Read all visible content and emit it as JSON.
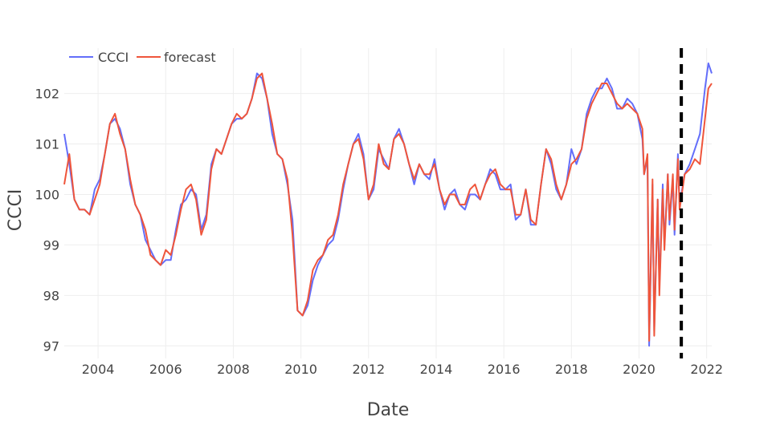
{
  "chart_data": {
    "type": "line",
    "xlabel": "Date",
    "ylabel": "CCCI",
    "xlim": [
      2003.0,
      2022.15
    ],
    "ylim": [
      96.75,
      102.9
    ],
    "x_ticks": [
      2004,
      2006,
      2008,
      2010,
      2012,
      2014,
      2016,
      2018,
      2020,
      2022
    ],
    "y_ticks": [
      97,
      98,
      99,
      100,
      101,
      102
    ],
    "grid": true,
    "legend_position": "top-left",
    "colors": {
      "ccci": "#636efa",
      "forecast": "#ef553b",
      "marker": "#000000"
    },
    "vline": {
      "x": 2021.25,
      "style": "dashed"
    },
    "series": [
      {
        "name": "CCCI",
        "points": [
          [
            2003.0,
            101.2
          ],
          [
            2003.15,
            100.6
          ],
          [
            2003.3,
            99.9
          ],
          [
            2003.45,
            99.7
          ],
          [
            2003.6,
            99.7
          ],
          [
            2003.75,
            99.6
          ],
          [
            2003.9,
            100.1
          ],
          [
            2004.05,
            100.3
          ],
          [
            2004.2,
            100.8
          ],
          [
            2004.35,
            101.4
          ],
          [
            2004.5,
            101.5
          ],
          [
            2004.65,
            101.3
          ],
          [
            2004.8,
            100.9
          ],
          [
            2004.95,
            100.2
          ],
          [
            2005.1,
            99.8
          ],
          [
            2005.25,
            99.6
          ],
          [
            2005.4,
            99.1
          ],
          [
            2005.55,
            98.9
          ],
          [
            2005.7,
            98.7
          ],
          [
            2005.85,
            98.6
          ],
          [
            2006.0,
            98.7
          ],
          [
            2006.15,
            98.7
          ],
          [
            2006.3,
            99.3
          ],
          [
            2006.45,
            99.8
          ],
          [
            2006.6,
            99.9
          ],
          [
            2006.75,
            100.1
          ],
          [
            2006.9,
            100.0
          ],
          [
            2007.05,
            99.3
          ],
          [
            2007.2,
            99.6
          ],
          [
            2007.35,
            100.6
          ],
          [
            2007.5,
            100.9
          ],
          [
            2007.65,
            100.8
          ],
          [
            2007.8,
            101.1
          ],
          [
            2007.95,
            101.4
          ],
          [
            2008.1,
            101.5
          ],
          [
            2008.25,
            101.5
          ],
          [
            2008.4,
            101.6
          ],
          [
            2008.55,
            101.9
          ],
          [
            2008.7,
            102.4
          ],
          [
            2008.85,
            102.3
          ],
          [
            2009.0,
            101.9
          ],
          [
            2009.15,
            101.2
          ],
          [
            2009.3,
            100.8
          ],
          [
            2009.45,
            100.7
          ],
          [
            2009.6,
            100.2
          ],
          [
            2009.75,
            99.5
          ],
          [
            2009.9,
            97.7
          ],
          [
            2010.05,
            97.6
          ],
          [
            2010.2,
            97.8
          ],
          [
            2010.35,
            98.3
          ],
          [
            2010.5,
            98.6
          ],
          [
            2010.65,
            98.8
          ],
          [
            2010.8,
            99.0
          ],
          [
            2010.95,
            99.1
          ],
          [
            2011.1,
            99.5
          ],
          [
            2011.25,
            100.1
          ],
          [
            2011.4,
            100.6
          ],
          [
            2011.55,
            101.0
          ],
          [
            2011.7,
            101.2
          ],
          [
            2011.85,
            100.8
          ],
          [
            2012.0,
            99.9
          ],
          [
            2012.15,
            100.1
          ],
          [
            2012.3,
            100.9
          ],
          [
            2012.45,
            100.7
          ],
          [
            2012.6,
            100.5
          ],
          [
            2012.75,
            101.1
          ],
          [
            2012.9,
            101.3
          ],
          [
            2013.05,
            101.0
          ],
          [
            2013.2,
            100.6
          ],
          [
            2013.35,
            100.2
          ],
          [
            2013.5,
            100.6
          ],
          [
            2013.65,
            100.4
          ],
          [
            2013.8,
            100.3
          ],
          [
            2013.95,
            100.7
          ],
          [
            2014.1,
            100.1
          ],
          [
            2014.25,
            99.7
          ],
          [
            2014.4,
            100.0
          ],
          [
            2014.55,
            100.1
          ],
          [
            2014.7,
            99.8
          ],
          [
            2014.85,
            99.7
          ],
          [
            2015.0,
            100.0
          ],
          [
            2015.15,
            100.0
          ],
          [
            2015.3,
            99.9
          ],
          [
            2015.45,
            100.2
          ],
          [
            2015.6,
            100.5
          ],
          [
            2015.75,
            100.4
          ],
          [
            2015.9,
            100.1
          ],
          [
            2016.05,
            100.1
          ],
          [
            2016.2,
            100.2
          ],
          [
            2016.35,
            99.5
          ],
          [
            2016.5,
            99.6
          ],
          [
            2016.65,
            100.1
          ],
          [
            2016.8,
            99.4
          ],
          [
            2016.95,
            99.4
          ],
          [
            2017.1,
            100.2
          ],
          [
            2017.25,
            100.9
          ],
          [
            2017.4,
            100.6
          ],
          [
            2017.55,
            100.1
          ],
          [
            2017.7,
            99.9
          ],
          [
            2017.85,
            100.2
          ],
          [
            2018.0,
            100.9
          ],
          [
            2018.15,
            100.6
          ],
          [
            2018.3,
            100.9
          ],
          [
            2018.45,
            101.6
          ],
          [
            2018.6,
            101.9
          ],
          [
            2018.75,
            102.1
          ],
          [
            2018.9,
            102.1
          ],
          [
            2019.05,
            102.3
          ],
          [
            2019.2,
            102.1
          ],
          [
            2019.35,
            101.7
          ],
          [
            2019.5,
            101.7
          ],
          [
            2019.65,
            101.9
          ],
          [
            2019.8,
            101.8
          ],
          [
            2019.95,
            101.6
          ],
          [
            2020.1,
            101.1
          ],
          [
            2020.25,
            100.7
          ],
          [
            2020.4,
            100.2
          ],
          [
            2020.55,
            99.9
          ],
          [
            2020.7,
            100.2
          ],
          [
            2020.85,
            100.4
          ],
          [
            2021.0,
            100.3
          ],
          [
            2021.15,
            100.8
          ],
          [
            2020.15,
            100.4
          ],
          [
            2020.3,
            97.0
          ],
          [
            2020.45,
            97.3
          ],
          [
            2020.6,
            98.2
          ],
          [
            2020.75,
            99.0
          ],
          [
            2020.9,
            99.4
          ],
          [
            2021.05,
            99.2
          ],
          [
            2021.2,
            99.8
          ],
          [
            2021.35,
            100.4
          ],
          [
            2021.5,
            100.6
          ],
          [
            2021.65,
            100.9
          ],
          [
            2021.8,
            101.2
          ],
          [
            2021.95,
            102.1
          ],
          [
            2022.05,
            102.6
          ],
          [
            2022.15,
            102.4
          ]
        ]
      },
      {
        "name": "forecast",
        "points": [
          [
            2003.0,
            100.2
          ],
          [
            2003.15,
            100.8
          ],
          [
            2003.3,
            99.9
          ],
          [
            2003.45,
            99.7
          ],
          [
            2003.6,
            99.7
          ],
          [
            2003.75,
            99.6
          ],
          [
            2003.9,
            99.9
          ],
          [
            2004.05,
            100.2
          ],
          [
            2004.2,
            100.8
          ],
          [
            2004.35,
            101.4
          ],
          [
            2004.5,
            101.6
          ],
          [
            2004.65,
            101.2
          ],
          [
            2004.8,
            100.9
          ],
          [
            2004.95,
            100.3
          ],
          [
            2005.1,
            99.8
          ],
          [
            2005.25,
            99.6
          ],
          [
            2005.4,
            99.3
          ],
          [
            2005.55,
            98.8
          ],
          [
            2005.7,
            98.7
          ],
          [
            2005.85,
            98.6
          ],
          [
            2006.0,
            98.9
          ],
          [
            2006.15,
            98.8
          ],
          [
            2006.3,
            99.2
          ],
          [
            2006.45,
            99.7
          ],
          [
            2006.6,
            100.1
          ],
          [
            2006.75,
            100.2
          ],
          [
            2006.9,
            99.9
          ],
          [
            2007.05,
            99.2
          ],
          [
            2007.2,
            99.5
          ],
          [
            2007.35,
            100.5
          ],
          [
            2007.5,
            100.9
          ],
          [
            2007.65,
            100.8
          ],
          [
            2007.8,
            101.1
          ],
          [
            2007.95,
            101.4
          ],
          [
            2008.1,
            101.6
          ],
          [
            2008.25,
            101.5
          ],
          [
            2008.4,
            101.6
          ],
          [
            2008.55,
            101.9
          ],
          [
            2008.7,
            102.3
          ],
          [
            2008.85,
            102.4
          ],
          [
            2009.0,
            101.9
          ],
          [
            2009.15,
            101.4
          ],
          [
            2009.3,
            100.8
          ],
          [
            2009.45,
            100.7
          ],
          [
            2009.6,
            100.3
          ],
          [
            2009.75,
            99.2
          ],
          [
            2009.9,
            97.7
          ],
          [
            2010.05,
            97.6
          ],
          [
            2010.2,
            97.9
          ],
          [
            2010.35,
            98.5
          ],
          [
            2010.5,
            98.7
          ],
          [
            2010.65,
            98.8
          ],
          [
            2010.8,
            99.1
          ],
          [
            2010.95,
            99.2
          ],
          [
            2011.1,
            99.6
          ],
          [
            2011.25,
            100.2
          ],
          [
            2011.4,
            100.6
          ],
          [
            2011.55,
            101.0
          ],
          [
            2011.7,
            101.1
          ],
          [
            2011.85,
            100.7
          ],
          [
            2012.0,
            99.9
          ],
          [
            2012.15,
            100.2
          ],
          [
            2012.3,
            101.0
          ],
          [
            2012.45,
            100.6
          ],
          [
            2012.6,
            100.5
          ],
          [
            2012.75,
            101.1
          ],
          [
            2012.9,
            101.2
          ],
          [
            2013.05,
            101.0
          ],
          [
            2013.2,
            100.6
          ],
          [
            2013.35,
            100.3
          ],
          [
            2013.5,
            100.6
          ],
          [
            2013.65,
            100.4
          ],
          [
            2013.8,
            100.4
          ],
          [
            2013.95,
            100.6
          ],
          [
            2014.1,
            100.1
          ],
          [
            2014.25,
            99.8
          ],
          [
            2014.4,
            100.0
          ],
          [
            2014.55,
            100.0
          ],
          [
            2014.7,
            99.8
          ],
          [
            2014.85,
            99.8
          ],
          [
            2015.0,
            100.1
          ],
          [
            2015.15,
            100.2
          ],
          [
            2015.3,
            99.9
          ],
          [
            2015.45,
            100.2
          ],
          [
            2015.6,
            100.4
          ],
          [
            2015.75,
            100.5
          ],
          [
            2015.9,
            100.2
          ],
          [
            2016.05,
            100.1
          ],
          [
            2016.2,
            100.1
          ],
          [
            2016.35,
            99.6
          ],
          [
            2016.5,
            99.6
          ],
          [
            2016.65,
            100.1
          ],
          [
            2016.8,
            99.5
          ],
          [
            2016.95,
            99.4
          ],
          [
            2017.1,
            100.2
          ],
          [
            2017.25,
            100.9
          ],
          [
            2017.4,
            100.7
          ],
          [
            2017.55,
            100.2
          ],
          [
            2017.7,
            99.9
          ],
          [
            2017.85,
            100.2
          ],
          [
            2018.0,
            100.6
          ],
          [
            2018.15,
            100.7
          ],
          [
            2018.3,
            100.9
          ],
          [
            2018.45,
            101.5
          ],
          [
            2018.6,
            101.8
          ],
          [
            2018.75,
            102.0
          ],
          [
            2018.9,
            102.2
          ],
          [
            2019.05,
            102.2
          ],
          [
            2019.2,
            102.0
          ],
          [
            2019.35,
            101.8
          ],
          [
            2019.5,
            101.7
          ],
          [
            2019.65,
            101.8
          ],
          [
            2019.8,
            101.7
          ],
          [
            2019.95,
            101.6
          ],
          [
            2020.1,
            101.3
          ],
          [
            2020.25,
            100.8
          ],
          [
            2020.4,
            100.3
          ],
          [
            2020.55,
            99.9
          ],
          [
            2020.7,
            100.1
          ],
          [
            2020.85,
            100.4
          ],
          [
            2021.0,
            100.4
          ],
          [
            2021.15,
            100.7
          ],
          [
            2020.15,
            100.4
          ],
          [
            2020.3,
            97.1
          ],
          [
            2020.45,
            97.2
          ],
          [
            2020.6,
            98.0
          ],
          [
            2020.75,
            98.9
          ],
          [
            2020.9,
            99.5
          ],
          [
            2021.05,
            99.3
          ],
          [
            2021.2,
            99.7
          ],
          [
            2021.35,
            100.4
          ],
          [
            2021.5,
            100.5
          ],
          [
            2021.65,
            100.7
          ],
          [
            2021.8,
            100.6
          ],
          [
            2021.95,
            101.5
          ],
          [
            2022.05,
            102.1
          ],
          [
            2022.15,
            102.2
          ]
        ]
      }
    ]
  }
}
